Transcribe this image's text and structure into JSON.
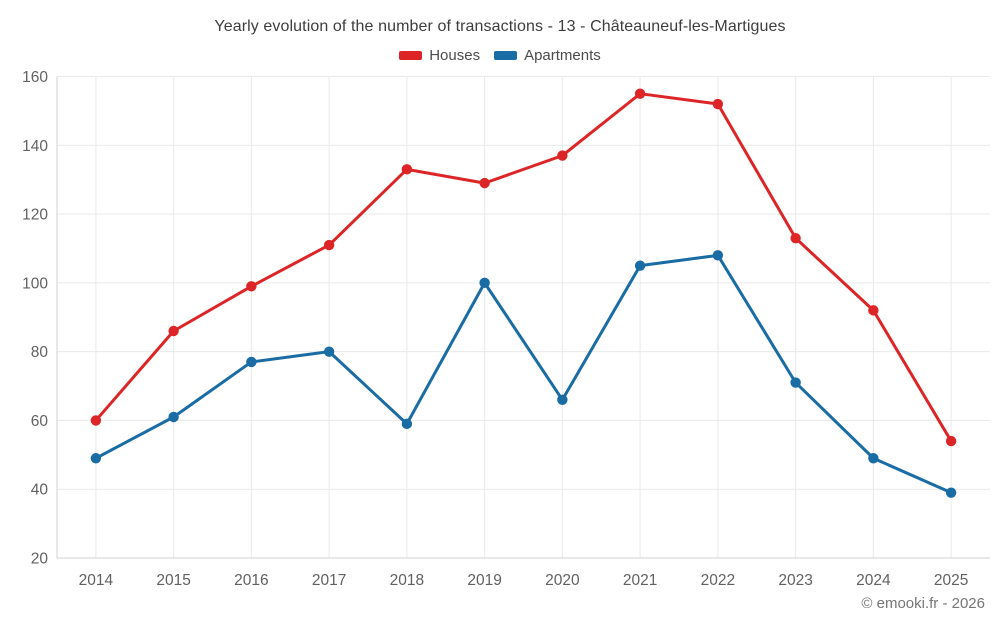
{
  "chart_data": {
    "type": "line",
    "title": "Yearly evolution of the number of transactions - 13 - Châteauneuf-les-Martigues",
    "categories": [
      "2014",
      "2015",
      "2016",
      "2017",
      "2018",
      "2019",
      "2020",
      "2021",
      "2022",
      "2023",
      "2024",
      "2025"
    ],
    "series": [
      {
        "name": "Houses",
        "color": "#dd2527",
        "values": [
          60,
          86,
          99,
          111,
          133,
          129,
          137,
          155,
          152,
          113,
          92,
          54
        ]
      },
      {
        "name": "Apartments",
        "color": "#1a6ca4",
        "values": [
          49,
          61,
          77,
          80,
          59,
          100,
          66,
          105,
          108,
          71,
          49,
          39
        ]
      }
    ],
    "ylim": [
      20,
      160
    ],
    "y_ticks": [
      20,
      40,
      60,
      80,
      100,
      120,
      140,
      160
    ],
    "grid": true,
    "legend_position": "top"
  },
  "footer": {
    "text": "© emooki.fr - 2026"
  },
  "colors": {
    "background": "#ffffff",
    "grid": "#e9e9e9",
    "axis": "#d2d2d2",
    "axis_text": "#616161",
    "title_text": "#3d3d3d",
    "legend_text": "#4c4c4c",
    "footer_text": "#757575"
  }
}
